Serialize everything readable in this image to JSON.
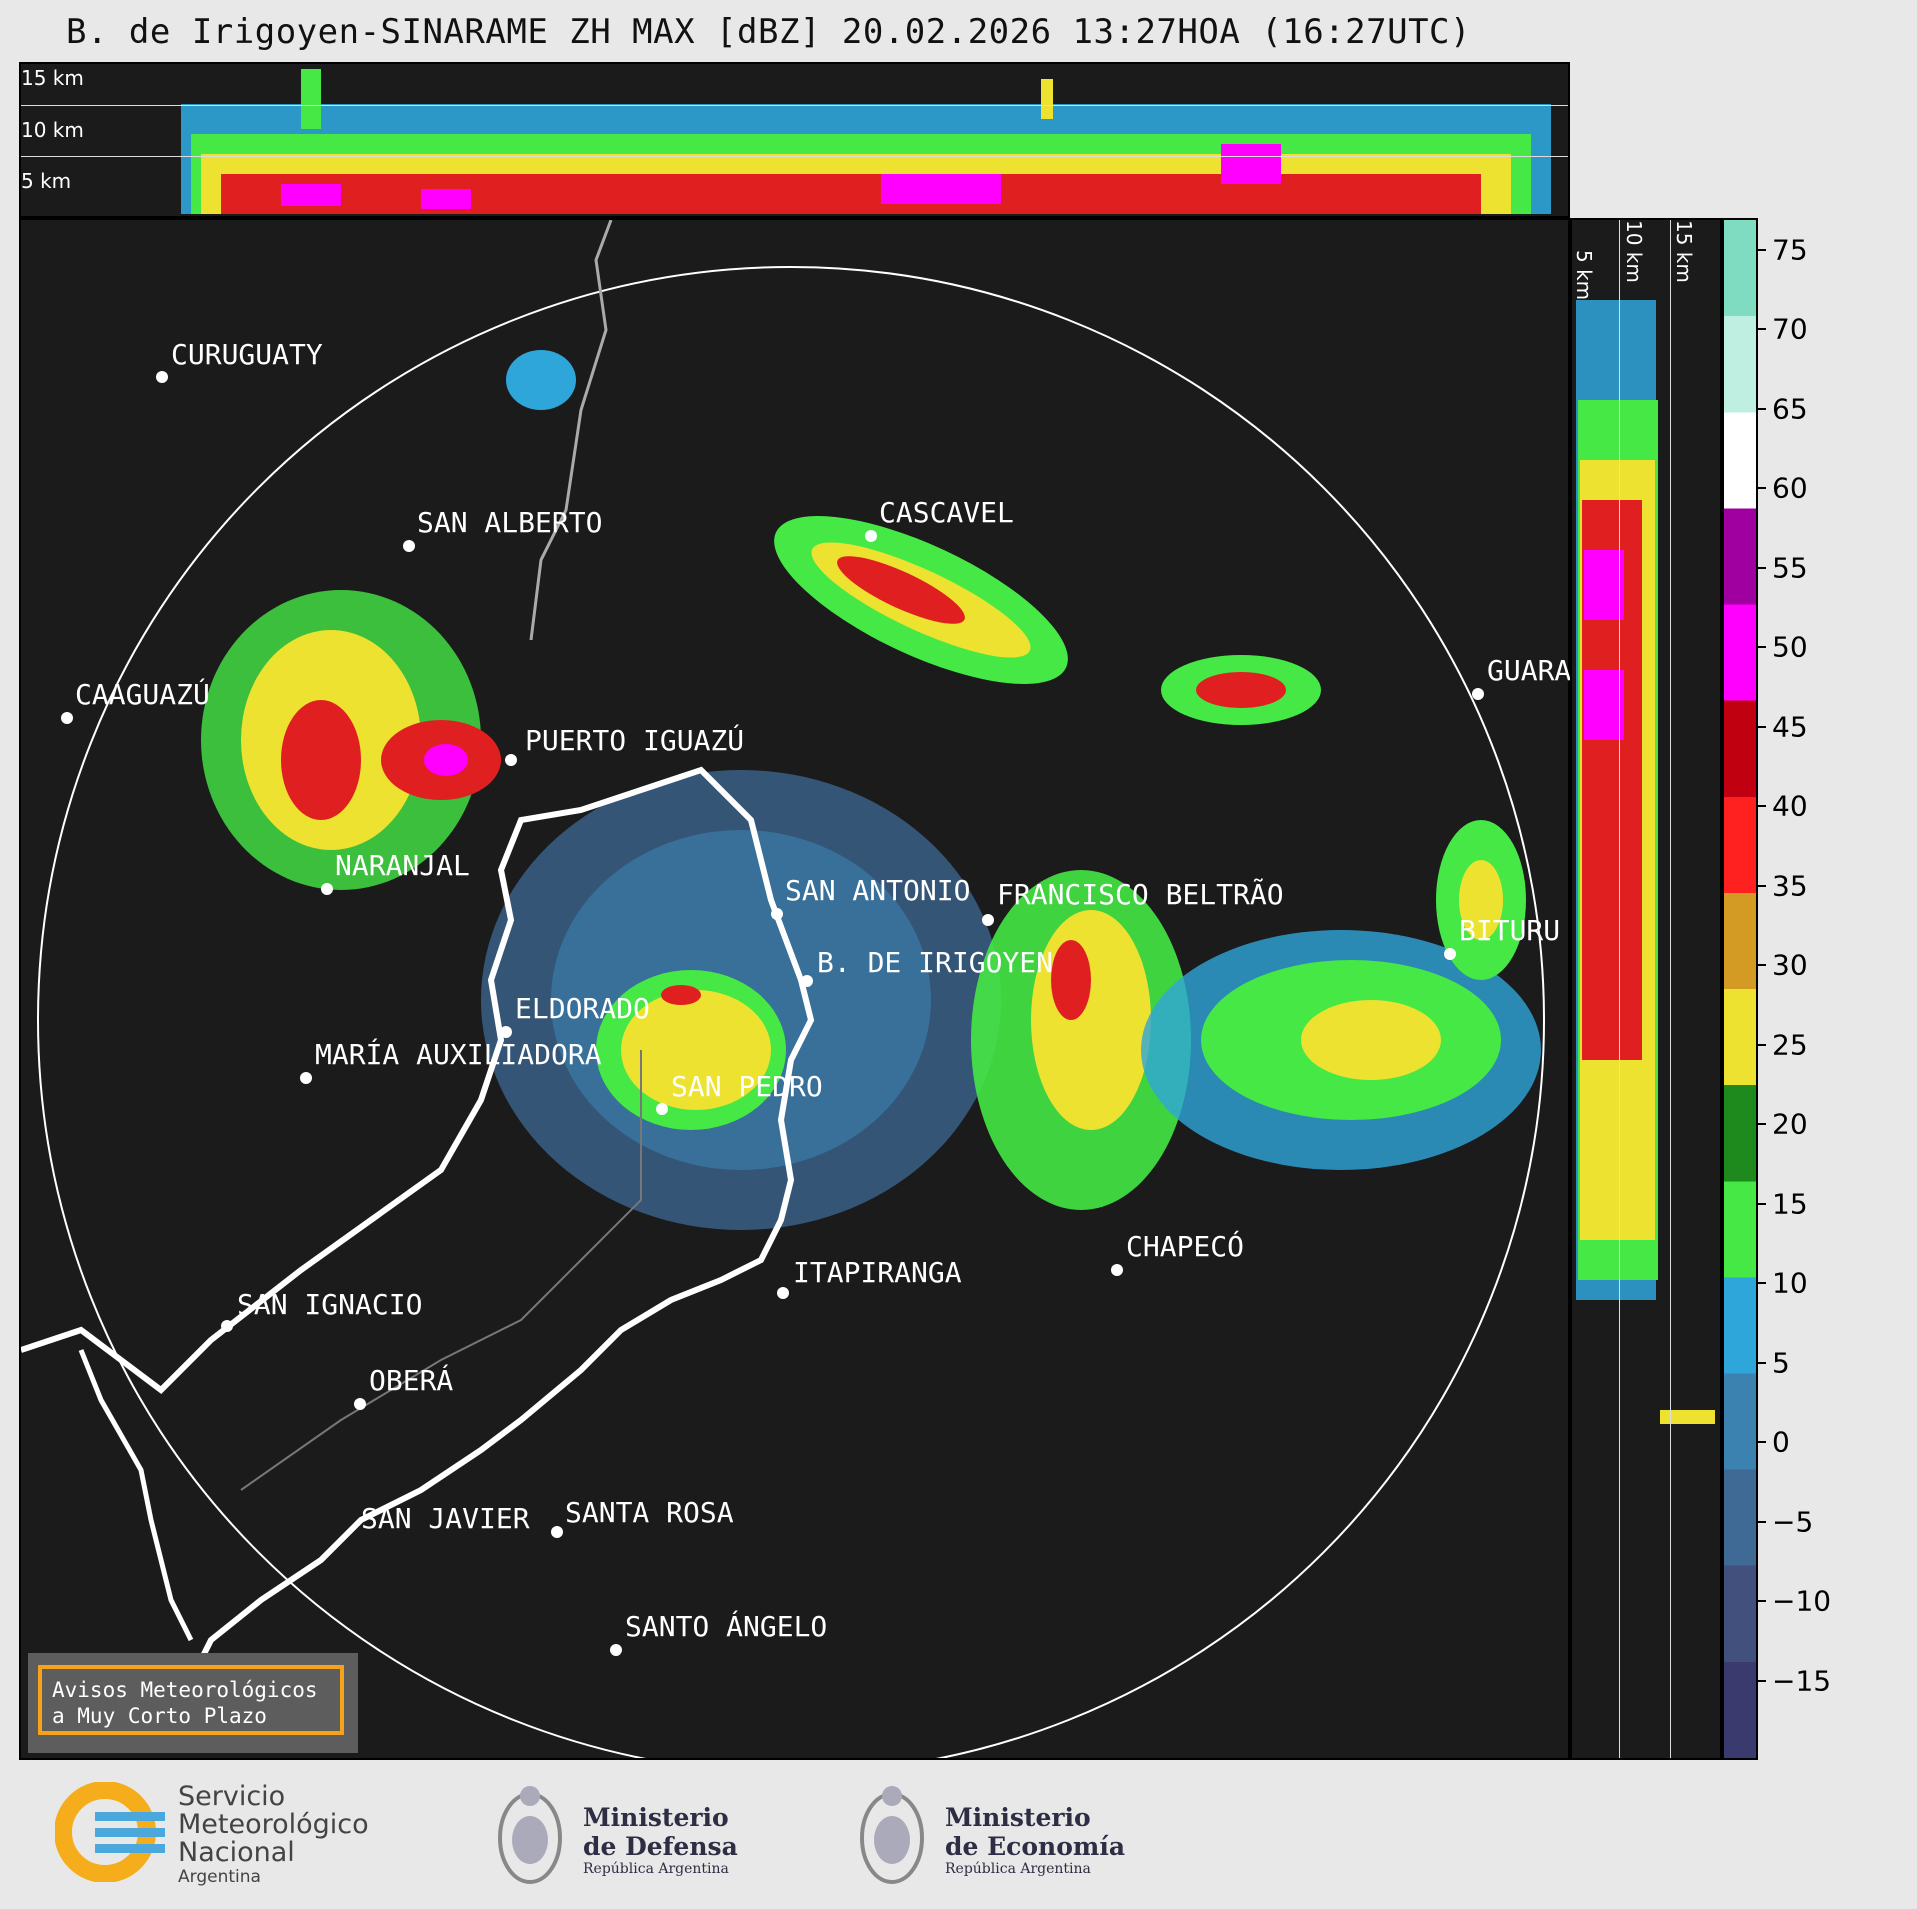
{
  "title": "B. de Irigoyen-SINARAME ZH MAX [dBZ] 20.02.2026 13:27HOA (16:27UTC)",
  "top_panel": {
    "altitudes": [
      "15 km",
      "10 km",
      "5 km"
    ]
  },
  "side_panel": {
    "altitudes": [
      "5 km",
      "10 km",
      "15 km"
    ]
  },
  "cities": [
    {
      "name": "CURUGUATY"
    },
    {
      "name": "SAN ALBERTO"
    },
    {
      "name": "CAAGUAZÚ"
    },
    {
      "name": "PUERTO IGUAZÚ"
    },
    {
      "name": "CASCAVEL"
    },
    {
      "name": "GUARA"
    },
    {
      "name": "NARANJAL"
    },
    {
      "name": "SAN ANTONIO"
    },
    {
      "name": "FRANCISCO BELTRÃO"
    },
    {
      "name": "BITURU"
    },
    {
      "name": "B. DE IRIGOYEN"
    },
    {
      "name": "ELDORADO"
    },
    {
      "name": "MARÍA AUXILIADORA"
    },
    {
      "name": "SAN PEDRO"
    },
    {
      "name": "CHAPECÓ"
    },
    {
      "name": "ITAPIRANGA"
    },
    {
      "name": "SAN IGNACIO"
    },
    {
      "name": "OBERÁ"
    },
    {
      "name": "SAN JAVIER"
    },
    {
      "name": "SANTA ROSA"
    },
    {
      "name": "SANTO ÁNGELO"
    }
  ],
  "colorbar": {
    "unit": "dBZ",
    "ticks": [
      "75",
      "70",
      "65",
      "60",
      "55",
      "50",
      "45",
      "40",
      "35",
      "30",
      "25",
      "20",
      "15",
      "10",
      "5",
      "0",
      "−5",
      "−10",
      "−15"
    ],
    "range": [
      -20,
      77
    ],
    "colors": [
      "#3a3a6e",
      "#42507e",
      "#3f6a96",
      "#3b82b0",
      "#2fa6da",
      "#45e845",
      "#1e8a1e",
      "#ede230",
      "#d39a24",
      "#ff2020",
      "#c00010",
      "#ff00ff",
      "#a000a0",
      "#ffffff",
      "#bfefe0",
      "#80dcc0"
    ]
  },
  "avisos": {
    "line1": "Avisos Meteorológicos",
    "line2": "a Muy Corto Plazo"
  },
  "logos": {
    "smn": {
      "line1": "Servicio",
      "line2": "Meteorológico",
      "line3": "Nacional",
      "line4": "Argentina"
    },
    "defensa": {
      "line1": "Ministerio",
      "line2": "de Defensa",
      "line3": "República Argentina"
    },
    "economia": {
      "line1": "Ministerio",
      "line2": "de Economía",
      "line3": "República Argentina"
    }
  }
}
